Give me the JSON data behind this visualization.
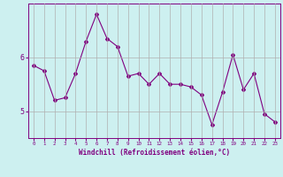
{
  "x": [
    0,
    1,
    2,
    3,
    4,
    5,
    6,
    7,
    8,
    9,
    10,
    11,
    12,
    13,
    14,
    15,
    16,
    17,
    18,
    19,
    20,
    21,
    22,
    23
  ],
  "y": [
    5.85,
    5.75,
    5.2,
    5.25,
    5.7,
    6.3,
    6.8,
    6.35,
    6.2,
    5.65,
    5.7,
    5.5,
    5.7,
    5.5,
    5.5,
    5.45,
    5.3,
    4.75,
    5.35,
    6.05,
    5.4,
    5.7,
    4.95,
    4.8
  ],
  "line_color": "#800080",
  "bg_color": "#cdf0f0",
  "grid_color": "#b0b0b0",
  "xlabel": "Windchill (Refroidissement éolien,°C)",
  "xlabel_color": "#800080",
  "tick_color": "#800080",
  "ylim": [
    4.5,
    7.0
  ],
  "yticks": [
    5,
    6
  ],
  "xlim": [
    -0.5,
    23.5
  ],
  "marker": "D",
  "marker_size": 2.0,
  "line_width": 0.8
}
